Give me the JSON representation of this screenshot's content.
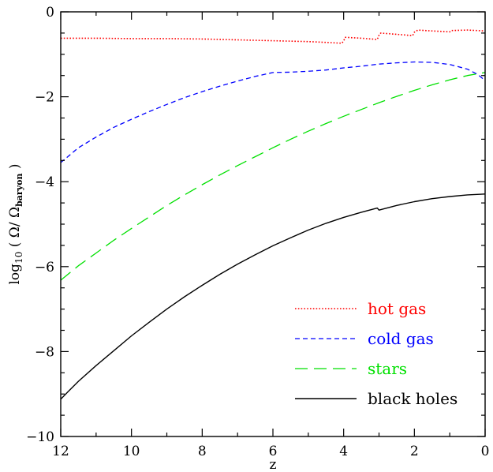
{
  "chart_data": {
    "type": "line",
    "xlabel": "z",
    "ylabel_parts": {
      "prefix": "log",
      "sub10": "10",
      "open": " ( Ω/ Ω",
      "sub_baryon": "baryon",
      "close": " )"
    },
    "xlim": [
      12,
      0
    ],
    "ylim": [
      -10,
      0
    ],
    "x_ticks": [
      "12",
      "10",
      "8",
      "6",
      "4",
      "2",
      "0"
    ],
    "y_ticks": [
      "0",
      "−2",
      "−4",
      "−6",
      "−8",
      "−10"
    ],
    "grid": false,
    "legend_position": "bottom-right",
    "series": [
      {
        "name": "hot gas",
        "color": "#ff0000",
        "style": "dotted",
        "points": [
          [
            12,
            -0.62
          ],
          [
            11,
            -0.62
          ],
          [
            10,
            -0.63
          ],
          [
            9,
            -0.63
          ],
          [
            8,
            -0.64
          ],
          [
            7,
            -0.66
          ],
          [
            6,
            -0.68
          ],
          [
            5,
            -0.7
          ],
          [
            4.5,
            -0.72
          ],
          [
            4.05,
            -0.74
          ],
          [
            4.0,
            -0.68
          ],
          [
            3.95,
            -0.6
          ],
          [
            3.5,
            -0.62
          ],
          [
            3.05,
            -0.65
          ],
          [
            3.0,
            -0.55
          ],
          [
            2.95,
            -0.5
          ],
          [
            2.5,
            -0.53
          ],
          [
            2.05,
            -0.56
          ],
          [
            2.0,
            -0.48
          ],
          [
            1.9,
            -0.43
          ],
          [
            1.5,
            -0.45
          ],
          [
            1.0,
            -0.47
          ],
          [
            0.95,
            -0.44
          ],
          [
            0.5,
            -0.43
          ],
          [
            0,
            -0.45
          ]
        ]
      },
      {
        "name": "cold gas",
        "color": "#0000ff",
        "style": "dashed",
        "points": [
          [
            12,
            -3.55
          ],
          [
            11.5,
            -3.2
          ],
          [
            11,
            -2.95
          ],
          [
            10.5,
            -2.72
          ],
          [
            10,
            -2.53
          ],
          [
            9.5,
            -2.35
          ],
          [
            9,
            -2.18
          ],
          [
            8.5,
            -2.02
          ],
          [
            8,
            -1.88
          ],
          [
            7.5,
            -1.75
          ],
          [
            7,
            -1.63
          ],
          [
            6.5,
            -1.52
          ],
          [
            6,
            -1.43
          ],
          [
            5.5,
            -1.42
          ],
          [
            5,
            -1.4
          ],
          [
            4.5,
            -1.37
          ],
          [
            4,
            -1.32
          ],
          [
            3.5,
            -1.28
          ],
          [
            3,
            -1.23
          ],
          [
            2.5,
            -1.2
          ],
          [
            2,
            -1.18
          ],
          [
            1.5,
            -1.19
          ],
          [
            1,
            -1.24
          ],
          [
            0.5,
            -1.35
          ],
          [
            0.2,
            -1.48
          ],
          [
            0,
            -1.62
          ]
        ]
      },
      {
        "name": "stars",
        "color": "#00e000",
        "style": "longdash",
        "points": [
          [
            12,
            -6.32
          ],
          [
            11.5,
            -5.98
          ],
          [
            11,
            -5.68
          ],
          [
            10.5,
            -5.38
          ],
          [
            10,
            -5.1
          ],
          [
            9.5,
            -4.83
          ],
          [
            9,
            -4.56
          ],
          [
            8.5,
            -4.31
          ],
          [
            8,
            -4.07
          ],
          [
            7.5,
            -3.84
          ],
          [
            7,
            -3.62
          ],
          [
            6.5,
            -3.41
          ],
          [
            6,
            -3.2
          ],
          [
            5.5,
            -3.0
          ],
          [
            5,
            -2.81
          ],
          [
            4.5,
            -2.63
          ],
          [
            4,
            -2.46
          ],
          [
            3.5,
            -2.3
          ],
          [
            3,
            -2.14
          ],
          [
            2.5,
            -1.99
          ],
          [
            2,
            -1.85
          ],
          [
            1.5,
            -1.72
          ],
          [
            1,
            -1.6
          ],
          [
            0.5,
            -1.5
          ],
          [
            0,
            -1.43
          ]
        ]
      },
      {
        "name": "black holes",
        "color": "#000000",
        "style": "solid",
        "points": [
          [
            12,
            -9.12
          ],
          [
            11.8,
            -8.95
          ],
          [
            11.5,
            -8.7
          ],
          [
            11,
            -8.33
          ],
          [
            10.5,
            -7.98
          ],
          [
            10,
            -7.63
          ],
          [
            9.5,
            -7.31
          ],
          [
            9,
            -7.0
          ],
          [
            8.5,
            -6.71
          ],
          [
            8,
            -6.44
          ],
          [
            7.5,
            -6.18
          ],
          [
            7,
            -5.94
          ],
          [
            6.5,
            -5.72
          ],
          [
            6,
            -5.51
          ],
          [
            5.5,
            -5.32
          ],
          [
            5,
            -5.14
          ],
          [
            4.5,
            -4.98
          ],
          [
            4,
            -4.84
          ],
          [
            3.5,
            -4.72
          ],
          [
            3.05,
            -4.62
          ],
          [
            3.0,
            -4.67
          ],
          [
            2.5,
            -4.56
          ],
          [
            2.0,
            -4.47
          ],
          [
            1.5,
            -4.4
          ],
          [
            1,
            -4.35
          ],
          [
            0.5,
            -4.31
          ],
          [
            0,
            -4.29
          ]
        ]
      }
    ]
  }
}
